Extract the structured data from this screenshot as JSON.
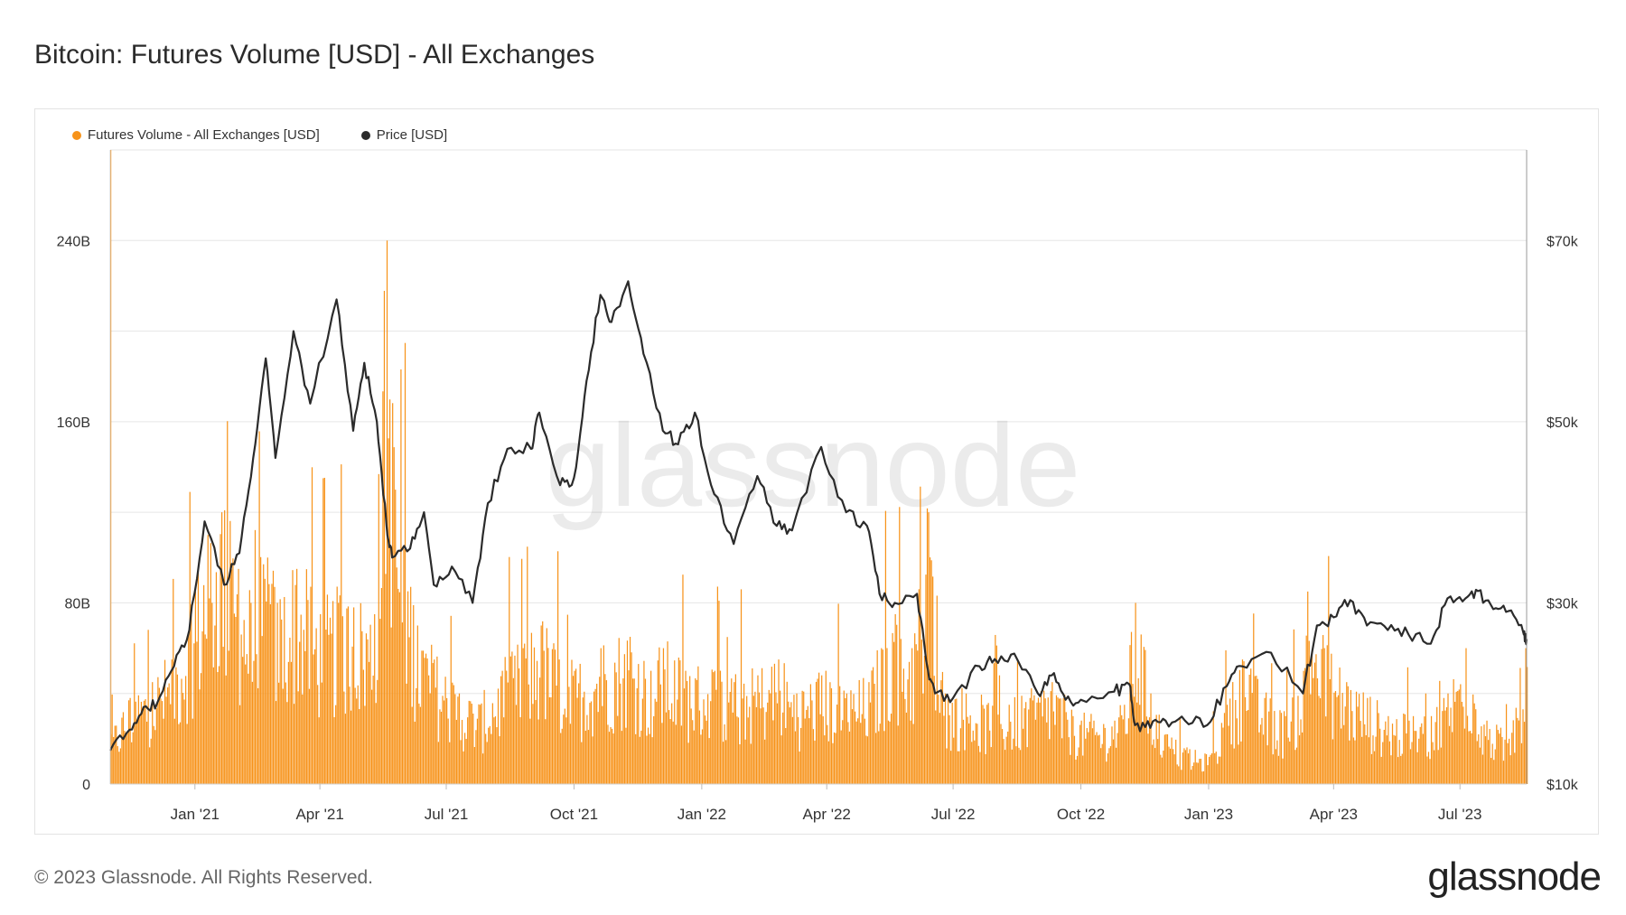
{
  "title": "Bitcoin: Futures Volume [USD] - All Exchanges",
  "footer": "© 2023 Glassnode. All Rights Reserved.",
  "logo": "glassnode",
  "watermark": "glassnode",
  "colors": {
    "volume": "#f7931a",
    "price": "#2b2b2b",
    "grid": "#e6e6e6",
    "text": "#333333"
  },
  "chart_data": {
    "type": "bar",
    "x_start": "2020-11-01",
    "x_end": "2023-08-18",
    "x_ticks": [
      {
        "label": "Jan '21",
        "date": "2021-01-01"
      },
      {
        "label": "Apr '21",
        "date": "2021-04-01"
      },
      {
        "label": "Jul '21",
        "date": "2021-07-01"
      },
      {
        "label": "Oct '21",
        "date": "2021-10-01"
      },
      {
        "label": "Jan '22",
        "date": "2022-01-01"
      },
      {
        "label": "Apr '22",
        "date": "2022-04-01"
      },
      {
        "label": "Jul '22",
        "date": "2022-07-01"
      },
      {
        "label": "Oct '22",
        "date": "2022-10-01"
      },
      {
        "label": "Jan '23",
        "date": "2023-01-01"
      },
      {
        "label": "Apr '23",
        "date": "2023-04-01"
      },
      {
        "label": "Jul '23",
        "date": "2023-07-01"
      }
    ],
    "y_left": {
      "ticks": [
        {
          "label": "0",
          "value": 0
        },
        {
          "label": "80B",
          "value": 80
        },
        {
          "label": "160B",
          "value": 160
        },
        {
          "label": "240B",
          "value": 240
        }
      ],
      "range": [
        0,
        280
      ]
    },
    "y_right": {
      "ticks": [
        {
          "label": "$10k",
          "value": 10000
        },
        {
          "label": "$30k",
          "value": 30000
        },
        {
          "label": "$50k",
          "value": 50000
        },
        {
          "label": "$70k",
          "value": 70000
        }
      ],
      "range": [
        10000,
        80000
      ]
    },
    "grid": true,
    "legend_position": "top-left",
    "series": [
      {
        "name": "Futures Volume - All Exchanges [USD]",
        "axis": "left",
        "type": "bar",
        "x": [
          "2020-11-01",
          "2020-11-15",
          "2020-12-01",
          "2020-12-15",
          "2021-01-01",
          "2021-01-10",
          "2021-01-20",
          "2021-02-01",
          "2021-02-10",
          "2021-02-22",
          "2021-03-01",
          "2021-03-15",
          "2021-04-01",
          "2021-04-14",
          "2021-04-25",
          "2021-05-10",
          "2021-05-19",
          "2021-05-25",
          "2021-06-10",
          "2021-06-22",
          "2021-07-10",
          "2021-07-25",
          "2021-08-10",
          "2021-08-25",
          "2021-09-07",
          "2021-09-20",
          "2021-10-01",
          "2021-10-20",
          "2021-11-10",
          "2021-11-25",
          "2021-12-04",
          "2021-12-20",
          "2022-01-10",
          "2022-01-24",
          "2022-02-10",
          "2022-02-25",
          "2022-03-10",
          "2022-03-28",
          "2022-04-15",
          "2022-05-01",
          "2022-05-10",
          "2022-05-20",
          "2022-06-01",
          "2022-06-13",
          "2022-06-25",
          "2022-07-10",
          "2022-07-25",
          "2022-08-10",
          "2022-08-25",
          "2022-09-10",
          "2022-09-25",
          "2022-10-10",
          "2022-10-25",
          "2022-11-01",
          "2022-11-09",
          "2022-11-20",
          "2022-12-01",
          "2022-12-15",
          "2023-01-01",
          "2023-01-14",
          "2023-01-25",
          "2023-02-10",
          "2023-02-25",
          "2023-03-10",
          "2023-03-13",
          "2023-03-25",
          "2023-04-10",
          "2023-04-25",
          "2023-05-10",
          "2023-05-25",
          "2023-06-10",
          "2023-06-22",
          "2023-07-05",
          "2023-07-20",
          "2023-08-05",
          "2023-08-17"
        ],
        "values": [
          22,
          38,
          45,
          55,
          85,
          110,
          120,
          95,
          80,
          100,
          80,
          95,
          75,
          80,
          78,
          75,
          240,
          130,
          70,
          55,
          40,
          35,
          50,
          60,
          70,
          55,
          50,
          60,
          65,
          50,
          60,
          50,
          50,
          45,
          48,
          55,
          40,
          48,
          40,
          45,
          60,
          75,
          60,
          120,
          40,
          40,
          35,
          35,
          38,
          45,
          30,
          28,
          28,
          35,
          80,
          40,
          22,
          15,
          12,
          35,
          55,
          38,
          30,
          50,
          85,
          60,
          45,
          38,
          30,
          28,
          30,
          40,
          60,
          28,
          20,
          60
        ]
      },
      {
        "name": "Price [USD]",
        "axis": "right",
        "type": "line",
        "x": [
          "2020-11-01",
          "2020-11-15",
          "2020-11-25",
          "2020-12-05",
          "2020-12-17",
          "2020-12-28",
          "2021-01-08",
          "2021-01-22",
          "2021-02-02",
          "2021-02-12",
          "2021-02-21",
          "2021-02-28",
          "2021-03-13",
          "2021-03-25",
          "2021-04-13",
          "2021-04-25",
          "2021-05-03",
          "2021-05-12",
          "2021-05-19",
          "2021-05-23",
          "2021-06-05",
          "2021-06-15",
          "2021-06-22",
          "2021-07-05",
          "2021-07-20",
          "2021-07-31",
          "2021-08-14",
          "2021-08-31",
          "2021-09-06",
          "2021-09-21",
          "2021-10-01",
          "2021-10-10",
          "2021-10-20",
          "2021-10-28",
          "2021-11-09",
          "2021-11-20",
          "2021-12-04",
          "2021-12-15",
          "2021-12-27",
          "2022-01-10",
          "2022-01-24",
          "2022-02-10",
          "2022-02-24",
          "2022-03-07",
          "2022-03-28",
          "2022-04-15",
          "2022-04-30",
          "2022-05-09",
          "2022-05-20",
          "2022-06-05",
          "2022-06-13",
          "2022-06-18",
          "2022-07-01",
          "2022-07-20",
          "2022-07-31",
          "2022-08-14",
          "2022-08-31",
          "2022-09-10",
          "2022-09-20",
          "2022-10-01",
          "2022-10-25",
          "2022-11-05",
          "2022-11-09",
          "2022-11-20",
          "2022-12-01",
          "2022-12-15",
          "2022-12-31",
          "2023-01-14",
          "2023-01-25",
          "2023-02-15",
          "2023-03-10",
          "2023-03-20",
          "2023-04-01",
          "2023-04-13",
          "2023-04-25",
          "2023-05-10",
          "2023-05-25",
          "2023-06-10",
          "2023-06-22",
          "2023-07-05",
          "2023-07-14",
          "2023-07-25",
          "2023-08-05",
          "2023-08-16",
          "2023-08-18"
        ],
        "values": [
          13700,
          16000,
          18500,
          19000,
          23000,
          27000,
          39000,
          32000,
          35500,
          46000,
          57000,
          46000,
          60000,
          52000,
          63500,
          49000,
          56500,
          50000,
          38500,
          35000,
          36000,
          40000,
          32000,
          34000,
          30000,
          41000,
          47000,
          47000,
          51000,
          43000,
          43800,
          54500,
          64000,
          61000,
          65500,
          57500,
          49000,
          47500,
          51000,
          42000,
          36500,
          44000,
          38500,
          38000,
          47200,
          40000,
          38500,
          31000,
          30000,
          31000,
          22500,
          20000,
          19500,
          23000,
          23800,
          24400,
          20000,
          22000,
          19300,
          19300,
          20200,
          21000,
          16500,
          16200,
          17000,
          17000,
          16500,
          20800,
          23000,
          24500,
          20000,
          27500,
          28400,
          30300,
          27500,
          27000,
          26500,
          25500,
          30500,
          30500,
          31300,
          29300,
          29100,
          26500,
          26000
        ]
      }
    ]
  }
}
